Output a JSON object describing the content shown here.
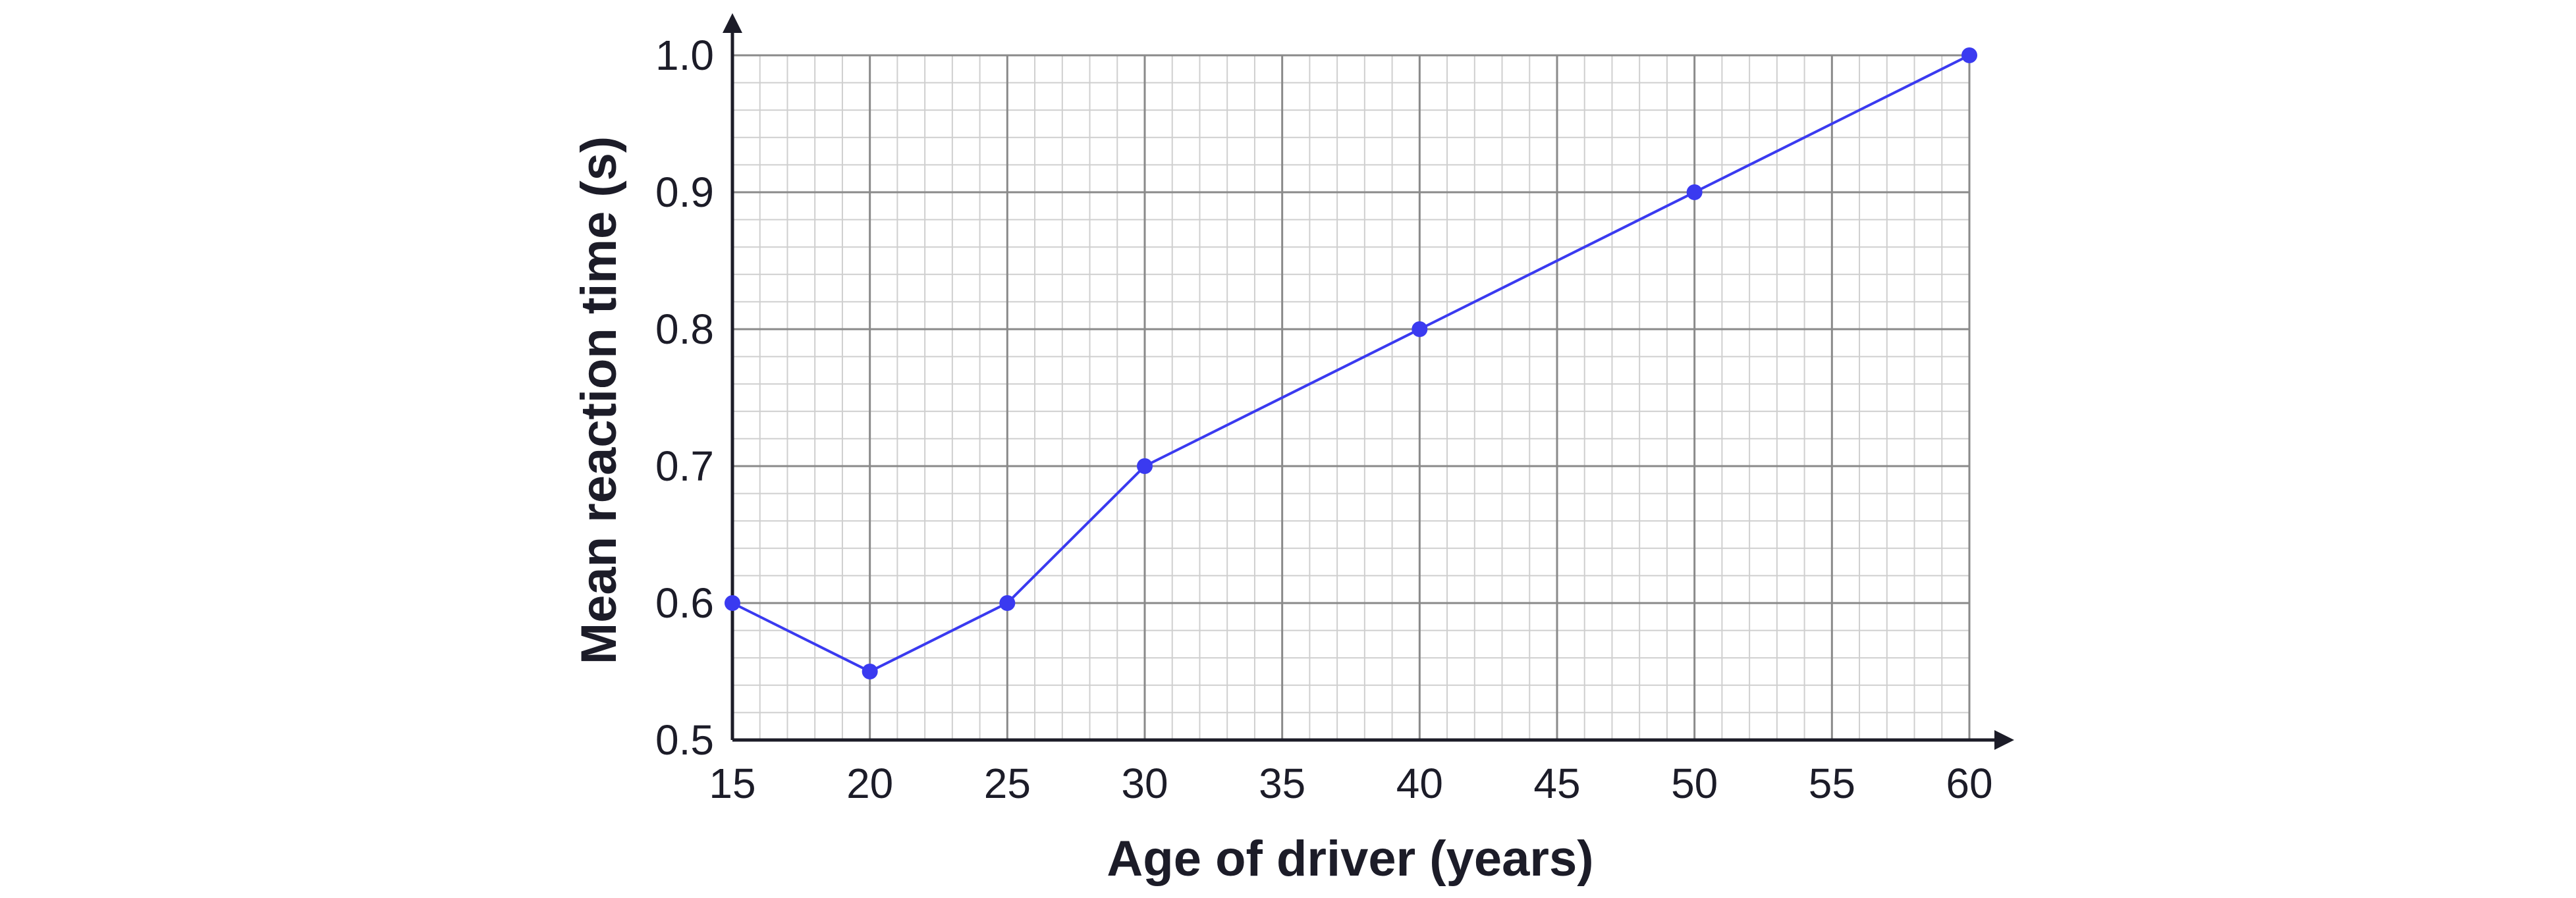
{
  "chart_data": {
    "type": "line",
    "title": "",
    "xlabel": "Age of driver (years)",
    "ylabel": "Mean reaction time (s)",
    "xlim": [
      15,
      60
    ],
    "ylim": [
      0.5,
      1.0
    ],
    "x_ticks": [
      15,
      20,
      25,
      30,
      35,
      40,
      45,
      50,
      55,
      60
    ],
    "x_tick_labels": [
      "15",
      "20",
      "25",
      "30",
      "35",
      "40",
      "45",
      "50",
      "55",
      "60"
    ],
    "y_ticks": [
      0.5,
      0.6,
      0.7,
      0.8,
      0.9,
      1.0
    ],
    "y_tick_labels": [
      "0.5",
      "0.6",
      "0.7",
      "0.8",
      "0.9",
      "1.0"
    ],
    "grid": true,
    "minor_grid_per_major": 5,
    "series": [
      {
        "x": [
          15,
          20,
          25,
          30,
          40,
          50,
          60
        ],
        "y": [
          0.6,
          0.55,
          0.6,
          0.7,
          0.8,
          0.9,
          1.0
        ]
      }
    ],
    "colors": {
      "series": "#3a3af0",
      "axis": "#1c1c28",
      "major_grid": "#8a8a8a",
      "minor_grid": "#cfcfcf"
    }
  }
}
